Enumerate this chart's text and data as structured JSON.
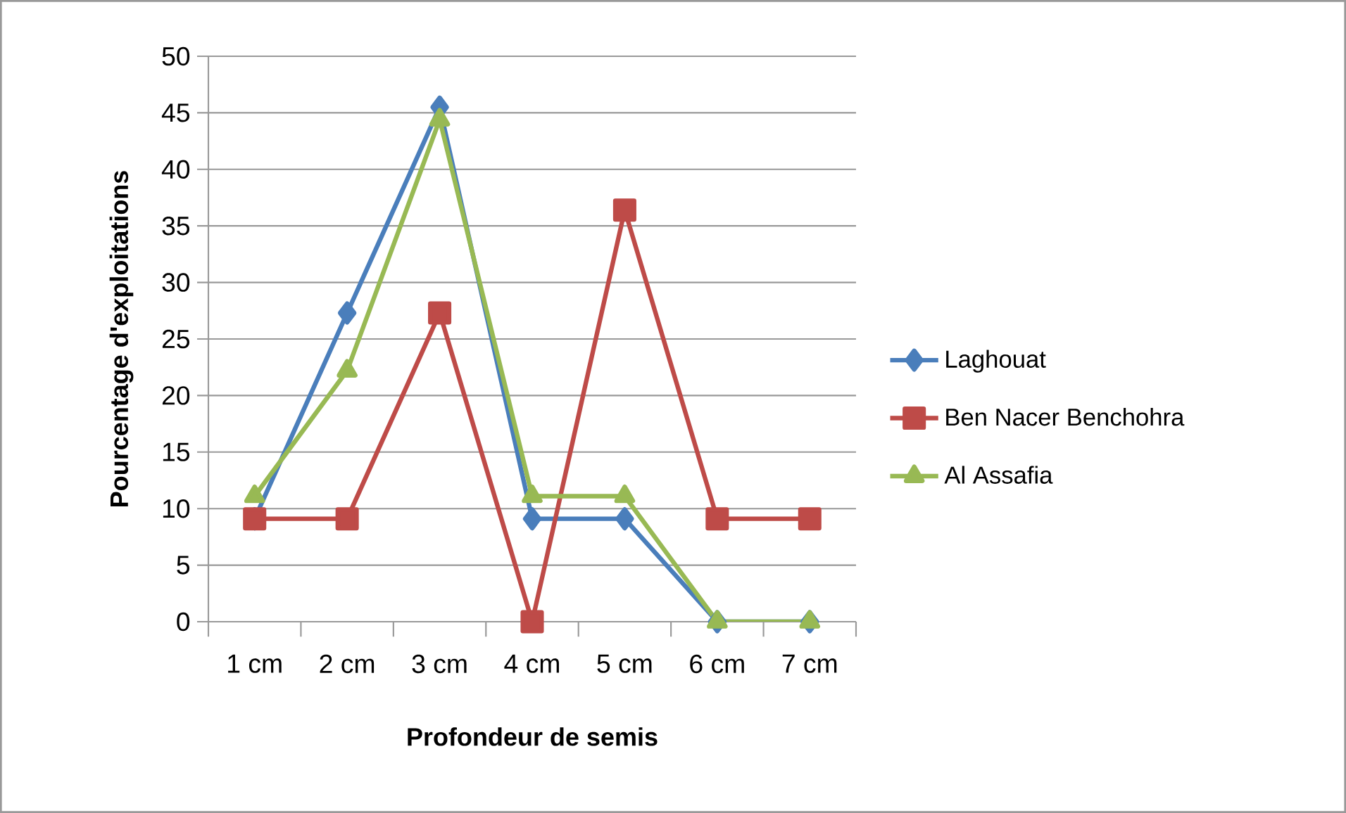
{
  "chart_data": {
    "type": "line",
    "xlabel": "Profondeur de semis",
    "ylabel": "Pourcentage d'exploitations",
    "categories": [
      "1 cm",
      "2 cm",
      "3 cm",
      "4 cm",
      "5 cm",
      "6 cm",
      "7 cm"
    ],
    "series": [
      {
        "name": "Laghouat",
        "color": "#4a7ebb",
        "marker": "diamond",
        "values": [
          9.1,
          27.3,
          45.5,
          9.1,
          9.1,
          0,
          0
        ]
      },
      {
        "name": "Ben Nacer Benchohra",
        "color": "#be4b48",
        "marker": "square",
        "values": [
          9.1,
          9.1,
          27.3,
          0,
          36.4,
          9.1,
          9.1
        ]
      },
      {
        "name": "Al Assafia",
        "color": "#98b954",
        "marker": "triangle",
        "values": [
          11.1,
          22.2,
          44.4,
          11.1,
          11.1,
          0,
          0
        ]
      }
    ],
    "ylim": [
      0,
      50
    ],
    "yticks": [
      0,
      5,
      10,
      15,
      20,
      25,
      30,
      35,
      40,
      45,
      50
    ],
    "grid": "y",
    "legend": "right",
    "line_style": "solid"
  }
}
